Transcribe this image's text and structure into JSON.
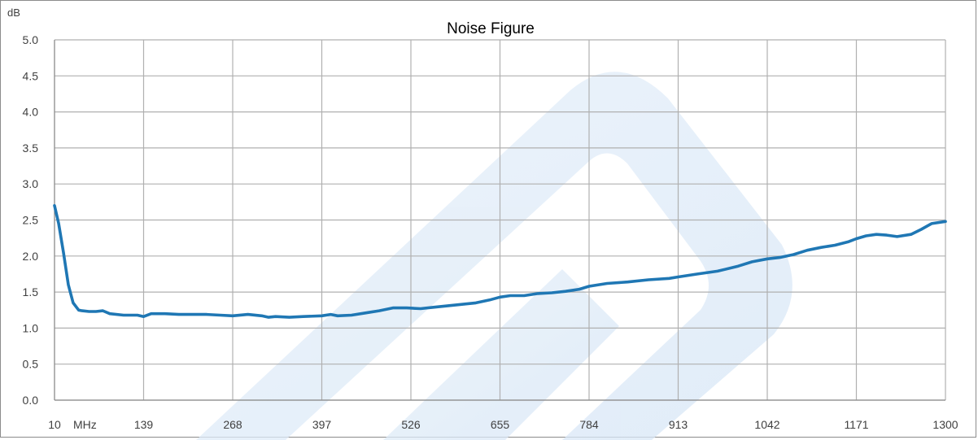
{
  "chart_data": {
    "type": "line",
    "title": "Noise Figure",
    "ylabel": "dB",
    "xlabel": "MHz",
    "xlim": [
      10,
      1300
    ],
    "ylim": [
      0,
      5
    ],
    "xticks": [
      10,
      139,
      268,
      397,
      526,
      655,
      784,
      913,
      1042,
      1171,
      1300
    ],
    "yticks": [
      0.0,
      0.5,
      1.0,
      1.5,
      2.0,
      2.5,
      3.0,
      3.5,
      4.0,
      4.5,
      5.0
    ],
    "grid": true,
    "legend": "none",
    "series": [
      {
        "color": "#1f77b4",
        "x": [
          10,
          16,
          23,
          30,
          37,
          45,
          50,
          60,
          70,
          80,
          90,
          110,
          130,
          139,
          150,
          170,
          190,
          210,
          230,
          250,
          268,
          290,
          310,
          320,
          330,
          350,
          370,
          397,
          410,
          420,
          440,
          460,
          480,
          500,
          520,
          540,
          560,
          580,
          600,
          620,
          640,
          655,
          670,
          690,
          710,
          730,
          750,
          770,
          784,
          810,
          840,
          870,
          900,
          913,
          940,
          970,
          1000,
          1020,
          1042,
          1060,
          1080,
          1100,
          1120,
          1140,
          1160,
          1171,
          1185,
          1200,
          1215,
          1230,
          1250,
          1265,
          1280,
          1300
        ],
        "y": [
          2.7,
          2.45,
          2.05,
          1.6,
          1.35,
          1.25,
          1.24,
          1.23,
          1.23,
          1.24,
          1.2,
          1.18,
          1.18,
          1.16,
          1.2,
          1.2,
          1.19,
          1.19,
          1.19,
          1.18,
          1.17,
          1.19,
          1.17,
          1.15,
          1.16,
          1.15,
          1.16,
          1.17,
          1.19,
          1.17,
          1.18,
          1.21,
          1.24,
          1.28,
          1.28,
          1.27,
          1.29,
          1.31,
          1.33,
          1.35,
          1.39,
          1.43,
          1.45,
          1.45,
          1.48,
          1.49,
          1.51,
          1.54,
          1.58,
          1.62,
          1.64,
          1.67,
          1.69,
          1.71,
          1.75,
          1.79,
          1.86,
          1.92,
          1.96,
          1.98,
          2.02,
          2.08,
          2.12,
          2.15,
          2.2,
          2.24,
          2.28,
          2.3,
          2.29,
          2.27,
          2.3,
          2.37,
          2.45,
          2.48
        ]
      }
    ]
  }
}
